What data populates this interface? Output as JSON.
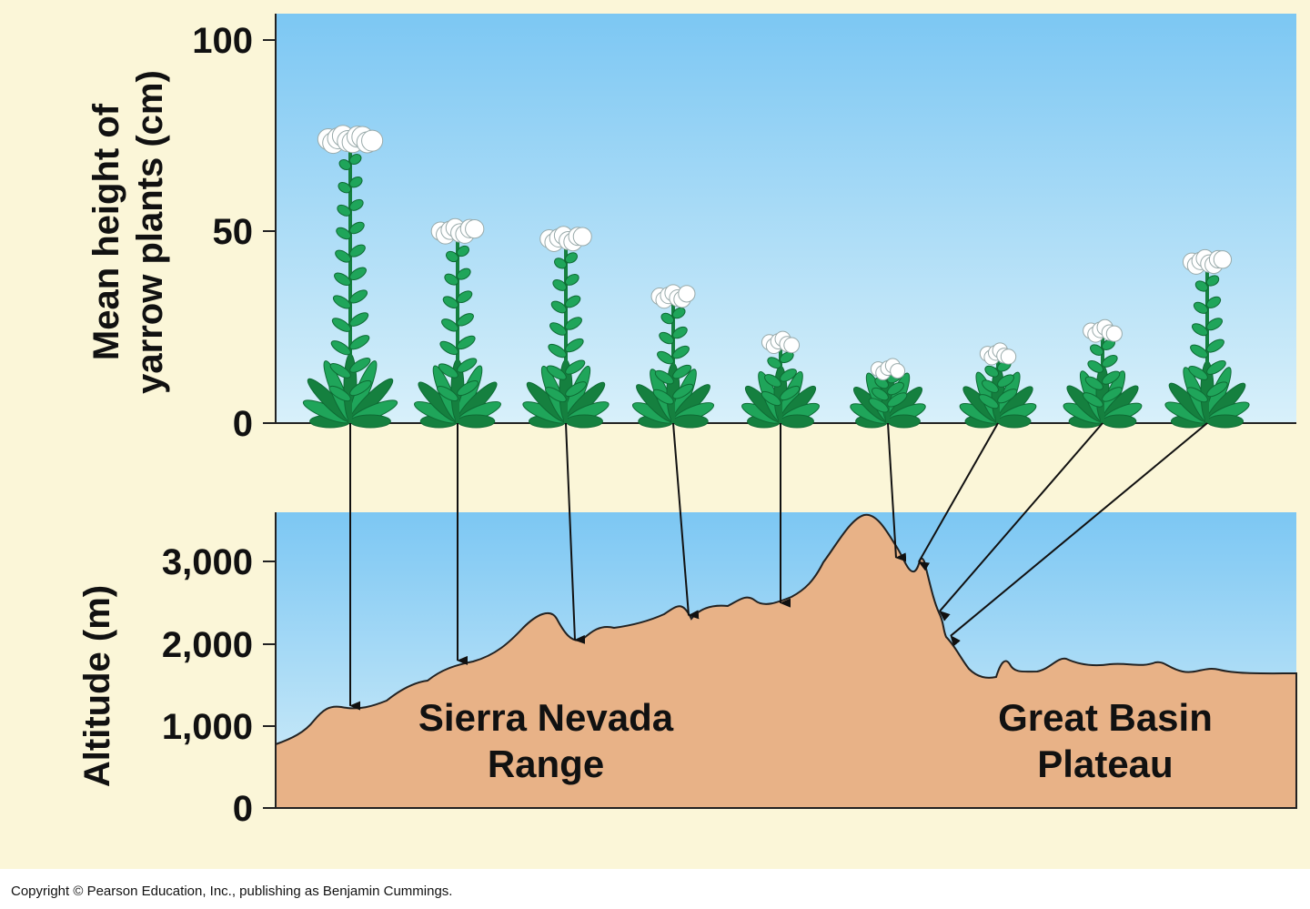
{
  "figure": {
    "top_chart": {
      "ylabel_line1": "Mean height of",
      "ylabel_line2": "yarrow plants (cm)",
      "ticks": [
        "100",
        "50",
        "0"
      ]
    },
    "bottom_chart": {
      "ylabel": "Altitude (m)",
      "ticks": [
        "3,000",
        "2,000",
        "1,000",
        "0"
      ]
    },
    "regions": {
      "sierra_line1": "Sierra Nevada",
      "sierra_line2": "Range",
      "basin_line1": "Great Basin",
      "basin_line2": "Plateau"
    },
    "copyright": "Copyright © Pearson Education, Inc., publishing as Benjamin Cummings."
  },
  "chart_data": {
    "type": "diagram",
    "plant_heights_cm": [
      76,
      52,
      50,
      35,
      23,
      16,
      20,
      26,
      44
    ],
    "plant_altitudes_m": [
      1200,
      1750,
      2000,
      2300,
      2450,
      3000,
      2950,
      2350,
      2050
    ],
    "height_ylim": [
      0,
      100
    ],
    "altitude_ylim": [
      0,
      3000
    ],
    "colors": {
      "frame": "#fbf6d8",
      "sky_top": "#7cc7f3",
      "sky_bottom": "#d4eef9",
      "terrain": "#e8b287",
      "leaf": "#1fa55a",
      "leaf_dark": "#15803f",
      "flower": "#ffffff"
    }
  }
}
